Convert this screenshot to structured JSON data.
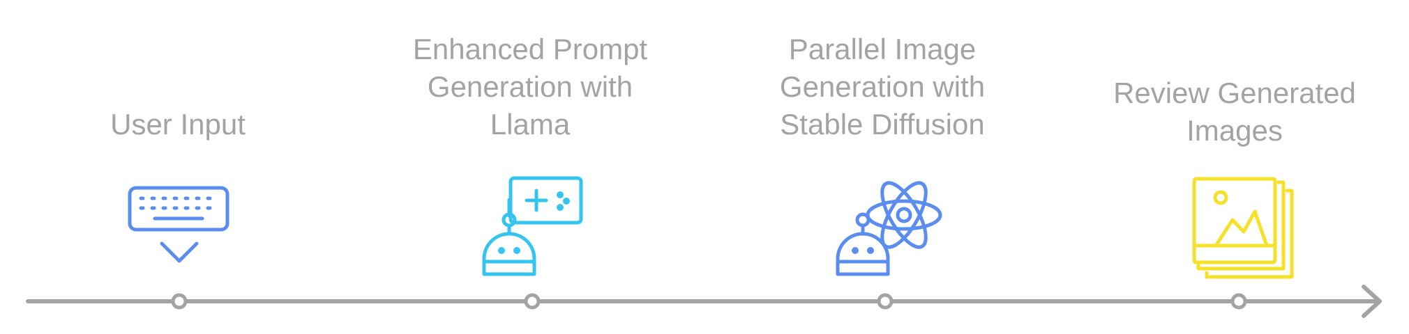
{
  "timeline": {
    "steps": [
      {
        "label": "User Input",
        "icon": "keyboard-icon",
        "color": "#5b8def"
      },
      {
        "label": "Enhanced Prompt\nGeneration with\nLlama",
        "icon": "robot-game-icon",
        "color": "#35c3f0"
      },
      {
        "label": "Parallel Image\nGeneration with\nStable Diffusion",
        "icon": "robot-atom-icon",
        "color": "#5b8def"
      },
      {
        "label": "Review Generated\nImages",
        "icon": "image-stack-icon",
        "color": "#f5e12a"
      }
    ],
    "line_color": "#a3a3a3"
  }
}
